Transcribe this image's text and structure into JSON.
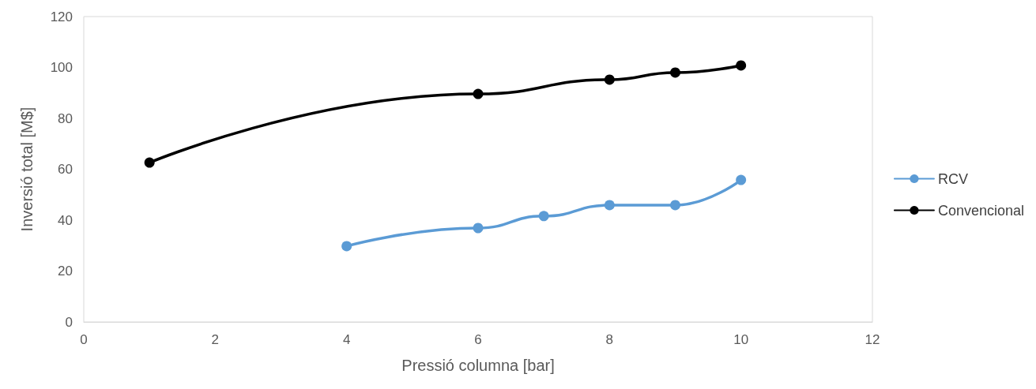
{
  "chart_data": {
    "type": "line",
    "xlabel": "Pressió columna [bar]",
    "ylabel": "Inversió total [M$]",
    "xlim": [
      0,
      12
    ],
    "xticks": [
      0,
      2,
      4,
      6,
      8,
      10,
      12
    ],
    "ylim": [
      0,
      120
    ],
    "yticks": [
      0,
      20,
      40,
      60,
      80,
      100,
      120
    ],
    "grid": false,
    "legend": "right",
    "marker": "circle",
    "line_style": "solid",
    "series": [
      {
        "name": "RCV",
        "color": "#5b9bd5",
        "x": [
          4,
          6,
          7,
          8,
          9,
          10
        ],
        "values": [
          29.8,
          36.9,
          41.6,
          45.9,
          45.9,
          55.8
        ]
      },
      {
        "name": "Convencional",
        "color": "#000000",
        "x": [
          1,
          6,
          8,
          9,
          10
        ],
        "values": [
          62.6,
          89.6,
          95.2,
          98.0,
          100.8
        ]
      }
    ]
  }
}
